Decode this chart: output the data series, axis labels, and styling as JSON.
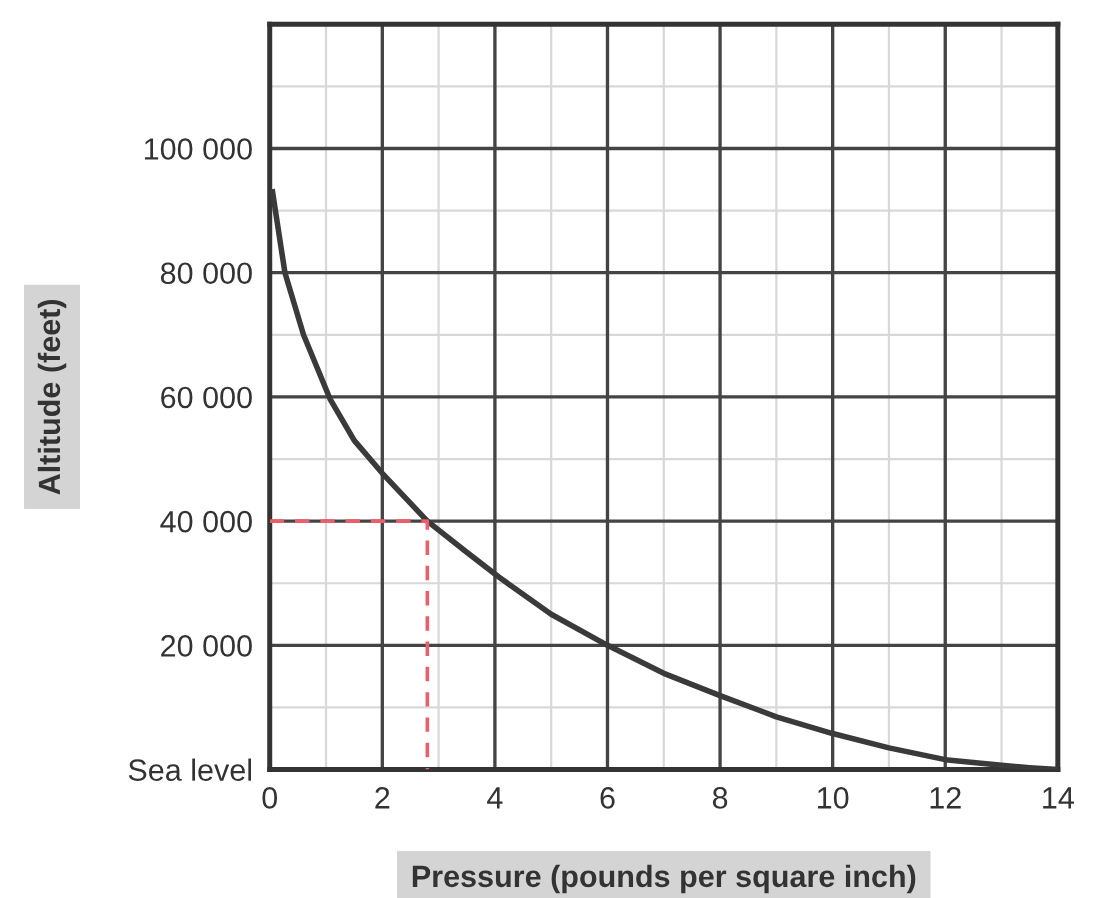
{
  "chart_data": {
    "type": "line",
    "xlabel": "Pressure (pounds per square inch)",
    "ylabel": "Altitude (feet)",
    "series": [
      {
        "color": "#3a3a3a",
        "x": [
          0.05,
          0.27,
          0.6,
          1.07,
          1.5,
          2,
          2.8,
          3.5,
          4.07,
          5,
          6,
          7,
          8,
          9,
          10,
          11,
          12,
          13,
          13.5,
          14
        ],
        "values": [
          93000,
          80000,
          70000,
          59700,
          53000,
          47700,
          40000,
          35000,
          31000,
          25000,
          20000,
          15500,
          11900,
          8500,
          5800,
          3500,
          1600,
          700,
          300,
          0
        ]
      },
      {
        "color": "#e8606a",
        "line_style": "dashed",
        "x": [
          0,
          2.8,
          2.8
        ],
        "values": [
          40000,
          40000,
          0
        ]
      }
    ],
    "xlim": [
      0,
      14
    ],
    "ylim": [
      0,
      120000
    ],
    "xticks": [
      0,
      2,
      4,
      6,
      8,
      10,
      12,
      14
    ],
    "yticks": [
      {
        "value": 0,
        "label": "Sea level"
      },
      {
        "value": 20000,
        "label": "20 000"
      },
      {
        "value": 40000,
        "label": "40 000"
      },
      {
        "value": 60000,
        "label": "60 000"
      },
      {
        "value": 80000,
        "label": "80 000"
      },
      {
        "value": 100000,
        "label": "100 000"
      }
    ],
    "grid": true,
    "marker": "none",
    "legend": false
  }
}
